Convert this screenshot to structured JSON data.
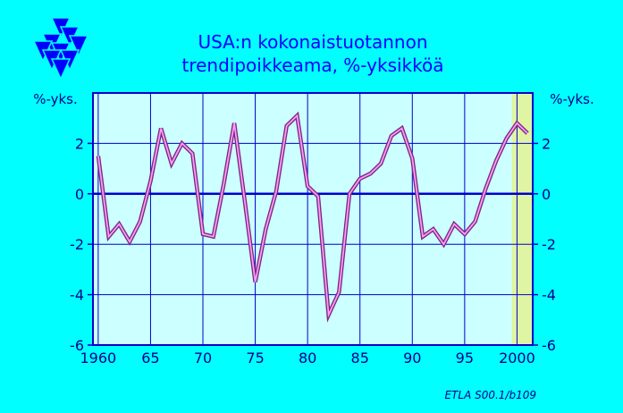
{
  "colors": {
    "background": "#00ffff",
    "plot_area": "#ccffff",
    "forecast_band": "#dff5a3",
    "grid": "#0000cc",
    "line_outer": "#7a2a7a",
    "line_inner": "#ff99ff",
    "text": "#00008b",
    "title": "#0000ff",
    "logo": "#0000ff"
  },
  "logo": {
    "icon": "etla-triangles-logo"
  },
  "credit": "ETLA S00.1/b109",
  "chart_data": {
    "type": "line",
    "title_line1": "USA:n  kokonaistuotannon",
    "title_line2": "trendipoikkeama,  %-yksikköä",
    "ylabel_left": "%-yks.",
    "ylabel_right": "%-yks.",
    "xlim": [
      1959.5,
      2001.5
    ],
    "ylim": [
      -6,
      4
    ],
    "x_ticks": [
      1960,
      1965,
      1970,
      1975,
      1980,
      1985,
      1990,
      1995,
      2000
    ],
    "x_tick_labels": [
      "1960",
      "65",
      "70",
      "75",
      "80",
      "85",
      "90",
      "95",
      "2000"
    ],
    "y_ticks": [
      -6,
      -4,
      -2,
      0,
      2
    ],
    "y_tick_labels": [
      "-6",
      "-4",
      "-2",
      "0",
      "2"
    ],
    "grid": true,
    "forecast_band": [
      2000,
      2001
    ],
    "series": [
      {
        "x": [
          1960,
          1961,
          1962,
          1963,
          1964,
          1965,
          1966,
          1967,
          1968,
          1969,
          1970,
          1971,
          1972,
          1973,
          1974,
          1975,
          1976,
          1977,
          1978,
          1979,
          1980,
          1981,
          1982,
          1983,
          1984,
          1985,
          1986,
          1987,
          1988,
          1989,
          1990,
          1991,
          1992,
          1993,
          1994,
          1995,
          1996,
          1997,
          1998,
          1999,
          2000,
          2001
        ],
        "y": [
          1.5,
          -1.7,
          -1.2,
          -1.9,
          -1.1,
          0.5,
          2.6,
          1.2,
          2.0,
          1.6,
          -1.6,
          -1.7,
          0.4,
          2.8,
          -0.3,
          -3.5,
          -1.4,
          0.1,
          2.7,
          3.1,
          0.3,
          -0.1,
          -4.8,
          -3.9,
          0.0,
          0.6,
          0.8,
          1.2,
          2.3,
          2.6,
          1.4,
          -1.7,
          -1.4,
          -2.0,
          -1.2,
          -1.6,
          -1.1,
          0.2,
          1.3,
          2.2,
          2.8,
          2.4
        ]
      }
    ]
  }
}
